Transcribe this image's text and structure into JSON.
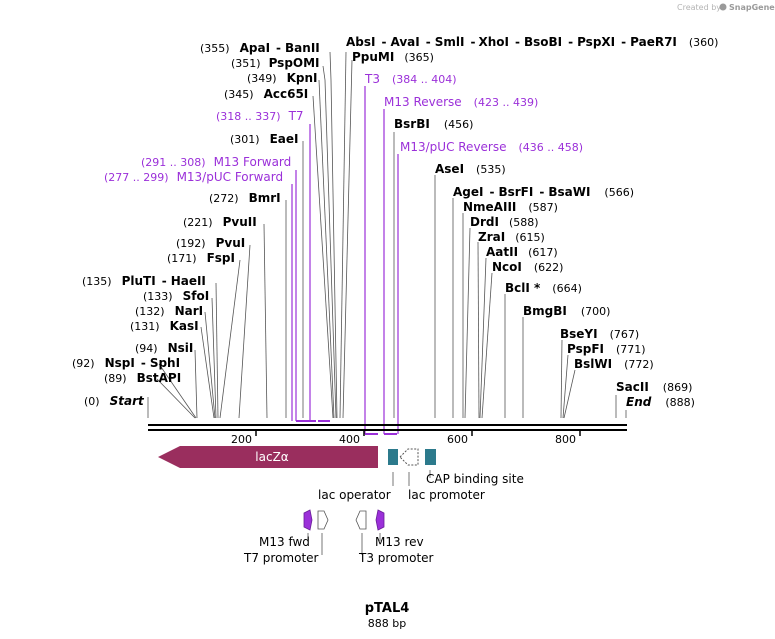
{
  "credit": {
    "text": "Created by",
    "brand": "SnapGene"
  },
  "map": {
    "name": "pTAL4",
    "length_label": "888 bp",
    "total_bp": 888,
    "ticks": [
      "200",
      "400",
      "600",
      "800"
    ]
  },
  "sites": {
    "start": {
      "pos": "(0)",
      "name": "Start"
    },
    "end": {
      "pos": "(888)",
      "name": "End"
    },
    "left": [
      {
        "pos": "(355)",
        "names": [
          "ApaI",
          "BanII"
        ]
      },
      {
        "pos": "(351)",
        "names": [
          "PspOMI"
        ]
      },
      {
        "pos": "(349)",
        "names": [
          "KpnI"
        ]
      },
      {
        "pos": "(345)",
        "names": [
          "Acc65I"
        ]
      },
      {
        "pos": "(301)",
        "names": [
          "EaeI"
        ]
      },
      {
        "pos": "(272)",
        "names": [
          "BmrI"
        ]
      },
      {
        "pos": "(221)",
        "names": [
          "PvuII"
        ]
      },
      {
        "pos": "(192)",
        "names": [
          "PvuI"
        ]
      },
      {
        "pos": "(171)",
        "names": [
          "FspI"
        ]
      },
      {
        "pos": "(135)",
        "names": [
          "PluTI",
          "HaeII"
        ]
      },
      {
        "pos": "(133)",
        "names": [
          "SfoI"
        ]
      },
      {
        "pos": "(132)",
        "names": [
          "NarI"
        ]
      },
      {
        "pos": "(131)",
        "names": [
          "KasI"
        ]
      },
      {
        "pos": "(94)",
        "names": [
          "NsiI"
        ]
      },
      {
        "pos": "(92)",
        "names": [
          "NspI",
          "SphI"
        ]
      },
      {
        "pos": "(89)",
        "names": [
          "BstAPI"
        ]
      }
    ],
    "right": [
      {
        "pos": "(360)",
        "names": [
          "AbsI",
          "AvaI",
          "SmlI",
          "XhoI",
          "BsoBI",
          "PspXI",
          "PaeR7I"
        ]
      },
      {
        "pos": "(365)",
        "names": [
          "PpuMI"
        ]
      },
      {
        "pos": "(456)",
        "names": [
          "BsrBI"
        ]
      },
      {
        "pos": "(535)",
        "names": [
          "AseI"
        ]
      },
      {
        "pos": "(566)",
        "names": [
          "AgeI",
          "BsrFI",
          "BsaWI"
        ]
      },
      {
        "pos": "(587)",
        "names": [
          "NmeAIII"
        ]
      },
      {
        "pos": "(588)",
        "names": [
          "DrdI"
        ]
      },
      {
        "pos": "(615)",
        "names": [
          "ZraI"
        ]
      },
      {
        "pos": "(617)",
        "names": [
          "AatII"
        ]
      },
      {
        "pos": "(622)",
        "names": [
          "NcoI"
        ]
      },
      {
        "pos": "(664)",
        "names": [
          "BclI *"
        ]
      },
      {
        "pos": "(700)",
        "names": [
          "BmgBI"
        ]
      },
      {
        "pos": "(767)",
        "names": [
          "BseYI"
        ]
      },
      {
        "pos": "(771)",
        "names": [
          "PspFI"
        ]
      },
      {
        "pos": "(772)",
        "names": [
          "BslWI"
        ]
      },
      {
        "pos": "(869)",
        "names": [
          "SacII"
        ]
      }
    ]
  },
  "primers": [
    {
      "range": "(318 .. 337)",
      "name": "T7"
    },
    {
      "range": "(291 .. 308)",
      "name": "M13 Forward"
    },
    {
      "range": "(277 .. 299)",
      "name": "M13/pUC Forward"
    },
    {
      "name": "T3",
      "range": "(384 .. 404)"
    },
    {
      "name": "M13 Reverse",
      "range": "(423 .. 439)"
    },
    {
      "name": "M13/pUC Reverse",
      "range": "(436 .. 458)"
    }
  ],
  "features": {
    "lacz": "lacZα",
    "lac_operator": "lac operator",
    "lac_promoter": "lac promoter",
    "cap_site": "CAP binding site",
    "m13_fwd": "M13 fwd",
    "t7_promoter": "T7 promoter",
    "m13_rev": "M13 rev",
    "t3_promoter": "T3 promoter"
  },
  "colors": {
    "lacz": "#9a2e5e",
    "teal": "#2c7a8c",
    "primer": "#9b30d9",
    "axis": "#000000"
  }
}
